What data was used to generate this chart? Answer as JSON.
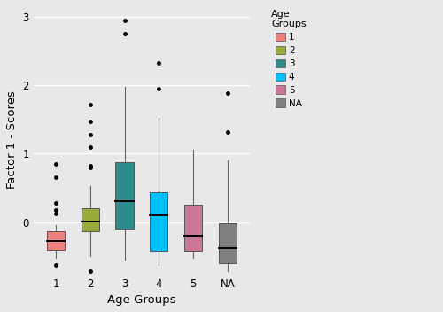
{
  "groups": [
    "1",
    "2",
    "3",
    "4",
    "5",
    "NA"
  ],
  "colors": [
    "#F08080",
    "#9AAB3A",
    "#2E8B8B",
    "#00BFFF",
    "#CC7799",
    "#808080"
  ],
  "legend_labels": [
    "1",
    "2",
    "3",
    "4",
    "5",
    "NA"
  ],
  "xlabel": "Age Groups",
  "ylabel": "Factor 1 - Scores",
  "ylim": [
    -0.75,
    3.15
  ],
  "yticks": [
    0,
    1,
    2,
    3
  ],
  "ytick_labels": [
    "0-",
    "1-",
    "2-",
    "3-"
  ],
  "background_color": "#E8E8E8",
  "grid_color": "#FFFFFF",
  "boxes": [
    {
      "q1": -0.4,
      "median": -0.27,
      "q3": -0.13,
      "whisker_low": -0.52,
      "whisker_high": -0.04,
      "outliers": [
        0.85,
        0.65,
        0.28,
        0.18,
        0.12,
        -0.62
      ]
    },
    {
      "q1": -0.14,
      "median": 0.01,
      "q3": 0.2,
      "whisker_low": -0.5,
      "whisker_high": 0.52,
      "outliers": [
        1.72,
        1.47,
        1.28,
        1.1,
        0.82,
        0.8,
        -0.72
      ]
    },
    {
      "q1": -0.1,
      "median": 0.3,
      "q3": 0.88,
      "whisker_low": -0.55,
      "whisker_high": 1.98,
      "outliers": [
        2.95,
        2.75
      ]
    },
    {
      "q1": -0.42,
      "median": 0.1,
      "q3": 0.43,
      "whisker_low": -0.62,
      "whisker_high": 1.52,
      "outliers": [
        2.32,
        1.95
      ]
    },
    {
      "q1": -0.42,
      "median": -0.2,
      "q3": 0.25,
      "whisker_low": -0.52,
      "whisker_high": 1.05,
      "outliers": []
    },
    {
      "q1": -0.6,
      "median": -0.38,
      "q3": -0.02,
      "whisker_low": -0.72,
      "whisker_high": 0.9,
      "outliers": [
        1.88,
        1.32
      ]
    }
  ],
  "box_width": 0.52,
  "whisker_color": "#666666",
  "median_color": "#000000",
  "box_edge_color": "#555555",
  "outlier_size": 2.5
}
